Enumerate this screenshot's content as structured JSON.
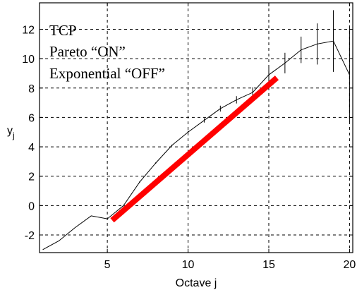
{
  "chart_data": {
    "type": "line",
    "title": "",
    "xlabel": "Octave j",
    "ylabel_main": "y",
    "ylabel_sub": "j",
    "xlim": [
      0.8,
      20.2
    ],
    "ylim": [
      -3.2,
      13.8
    ],
    "x_ticks": [
      5,
      10,
      15,
      20
    ],
    "y_ticks": [
      -2,
      0,
      2,
      4,
      6,
      8,
      10,
      12
    ],
    "grid": true,
    "annotations": [
      "TCP",
      "Pareto “ON”",
      "Exponential “OFF”"
    ],
    "series": [
      {
        "color": "#000000",
        "x": [
          1,
          2,
          3,
          4,
          5,
          6,
          7,
          8,
          9,
          10,
          11,
          12,
          13,
          14,
          15,
          16,
          17,
          18,
          19,
          20
        ],
        "y": [
          -3.0,
          -2.4,
          -1.5,
          -0.7,
          -0.9,
          0.0,
          1.6,
          2.9,
          4.1,
          5.0,
          5.8,
          6.6,
          7.2,
          7.7,
          8.9,
          9.7,
          10.6,
          11.0,
          11.2,
          8.9
        ],
        "error": [
          0,
          0,
          0,
          0,
          0,
          0.05,
          0.05,
          0.05,
          0.05,
          0.1,
          0.15,
          0.2,
          0.25,
          0.35,
          0.5,
          0.7,
          0.9,
          1.4,
          2.1,
          3.2
        ]
      },
      {
        "color": "#ff0000",
        "x": [
          5.3,
          15.5
        ],
        "y": [
          -1.0,
          8.7
        ]
      }
    ]
  }
}
